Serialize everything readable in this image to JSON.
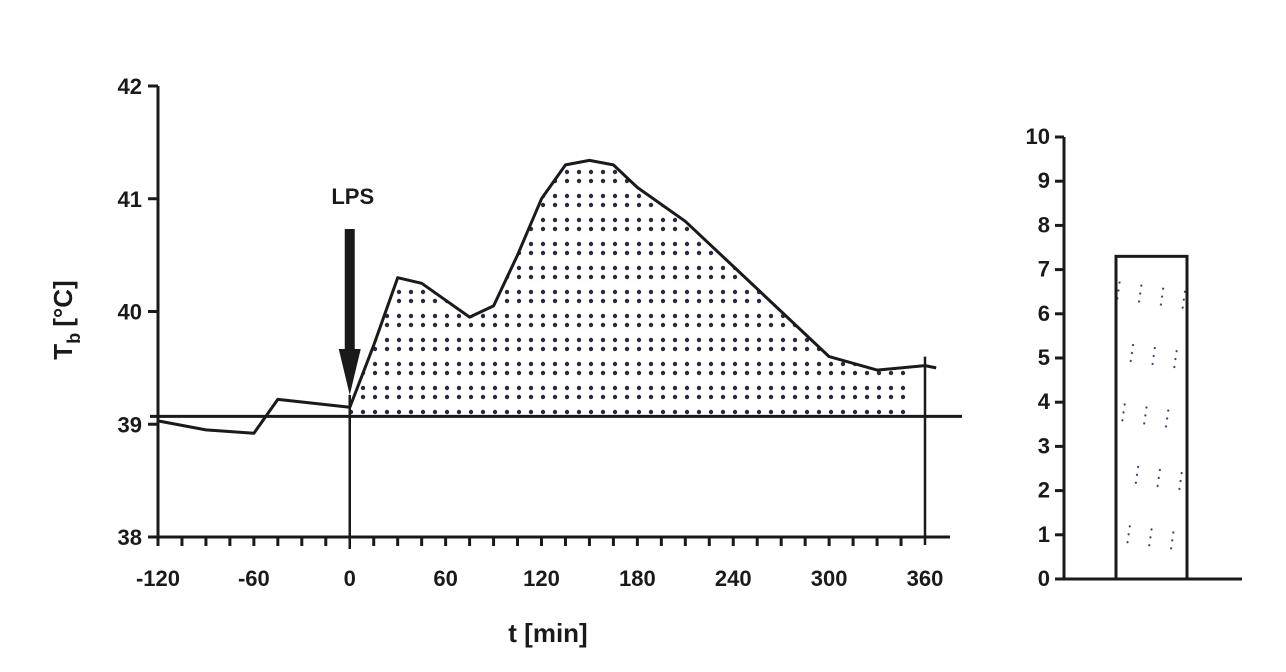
{
  "chart_data": [
    {
      "type": "line",
      "fill": "dotted-area-above-baseline",
      "xlabel": "t [min]",
      "ylabel_main": "T",
      "ylabel_sub": "b",
      "ylabel_unit": "[°C]",
      "xlim": [
        -120,
        360
      ],
      "ylim": [
        38,
        42
      ],
      "x_ticks": [
        "-120",
        "-60",
        "0",
        "60",
        "120",
        "180",
        "240",
        "300",
        "360"
      ],
      "y_ticks": [
        "38",
        "39",
        "40",
        "41",
        "42"
      ],
      "baseline": 39.07,
      "annotation": {
        "text": "LPS",
        "x": 0
      },
      "x": [
        -120,
        -90,
        -60,
        -45,
        0,
        15,
        30,
        45,
        60,
        75,
        90,
        105,
        120,
        135,
        150,
        165,
        180,
        210,
        240,
        270,
        300,
        330,
        360
      ],
      "y": [
        39.03,
        38.95,
        38.92,
        39.22,
        39.15,
        39.7,
        40.3,
        40.25,
        40.1,
        39.95,
        40.05,
        40.5,
        41.0,
        41.3,
        41.34,
        41.3,
        41.1,
        40.8,
        40.4,
        40.0,
        39.6,
        39.48,
        39.52
      ],
      "x_end": 367,
      "y_end": 39.5
    },
    {
      "type": "bar",
      "ylim": [
        0,
        10
      ],
      "y_ticks": [
        "0",
        "1",
        "2",
        "3",
        "4",
        "5",
        "6",
        "7",
        "8",
        "9",
        "10"
      ],
      "values": [
        7.3
      ]
    }
  ]
}
